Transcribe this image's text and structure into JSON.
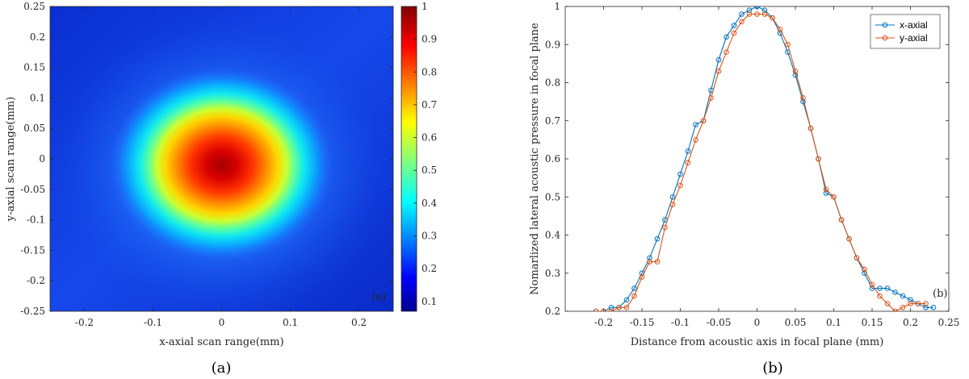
{
  "chart_data": [
    {
      "type": "heatmap",
      "panel": "(a)",
      "caption": "(a)",
      "xlabel": "x-axial scan range(mm)",
      "ylabel": "y-axial scan range(mm)",
      "xlim": [
        -0.25,
        0.25
      ],
      "ylim": [
        -0.25,
        0.25
      ],
      "x_ticks": [
        -0.2,
        -0.1,
        0,
        0.1,
        0.2
      ],
      "x_tick_labels": [
        "-0.2",
        "-0.1",
        "0",
        "0.1",
        "0.2"
      ],
      "y_ticks": [
        0.25,
        0.2,
        0.15,
        0.1,
        0.05,
        0,
        -0.05,
        -0.1,
        -0.15,
        -0.2,
        -0.25
      ],
      "y_tick_labels": [
        "0.25",
        "0.2",
        "0.15",
        "0.1",
        "0.05",
        "0",
        "-0.05",
        "-0.1",
        "-0.15",
        "-0.2",
        "-0.25"
      ],
      "colorbar": {
        "range": [
          0.07,
          1
        ],
        "ticks": [
          1,
          0.9,
          0.8,
          0.7,
          0.6,
          0.5,
          0.4,
          0.3,
          0.2,
          0.1
        ],
        "tick_labels": [
          "1",
          "0.9",
          "0.8",
          "0.7",
          "0.6",
          "0.5",
          "0.4",
          "0.3",
          "0.2",
          "0.1"
        ],
        "colormap": "jet"
      },
      "focal_spot": {
        "center": [
          0,
          -0.01
        ],
        "peak": 1,
        "background": 0.15
      },
      "annotation": "(a)"
    },
    {
      "type": "line",
      "panel": "(b)",
      "caption": "(b)",
      "xlabel": "Distance from acoustic axis in focal plane (mm)",
      "ylabel": "Nomarlized lateral acoustic pressure in focal plane",
      "xlim": [
        -0.25,
        0.25
      ],
      "ylim": [
        0.2,
        1
      ],
      "x_ticks": [
        -0.2,
        -0.15,
        -0.1,
        -0.05,
        0,
        0.05,
        0.1,
        0.15,
        0.2,
        0.25
      ],
      "x_tick_labels": [
        "-0.2",
        "-0.15",
        "-0.1",
        "-0.05",
        "0",
        "0.05",
        "0.1",
        "0.15",
        "0.2",
        "0.25"
      ],
      "y_ticks": [
        0.2,
        0.3,
        0.4,
        0.5,
        0.6,
        0.7,
        0.8,
        0.9,
        1
      ],
      "y_tick_labels": [
        "0.2",
        "0.3",
        "0.4",
        "0.5",
        "0.6",
        "0.7",
        "0.8",
        "0.9",
        "1"
      ],
      "legend_position": "top-right",
      "annotation": "(b)",
      "series": [
        {
          "name": "x-axial",
          "color": "#0072BD",
          "x": [
            -0.21,
            -0.2,
            -0.19,
            -0.18,
            -0.17,
            -0.16,
            -0.15,
            -0.14,
            -0.13,
            -0.12,
            -0.11,
            -0.1,
            -0.09,
            -0.08,
            -0.07,
            -0.06,
            -0.05,
            -0.04,
            -0.03,
            -0.02,
            -0.01,
            0,
            0.01,
            0.02,
            0.03,
            0.04,
            0.05,
            0.06,
            0.07,
            0.08,
            0.09,
            0.1,
            0.11,
            0.12,
            0.13,
            0.14,
            0.15,
            0.16,
            0.17,
            0.18,
            0.19,
            0.2,
            0.21,
            0.22,
            0.23
          ],
          "y": [
            0.2,
            0.2,
            0.21,
            0.21,
            0.23,
            0.26,
            0.3,
            0.34,
            0.39,
            0.44,
            0.5,
            0.56,
            0.62,
            0.69,
            0.7,
            0.78,
            0.86,
            0.92,
            0.95,
            0.98,
            0.99,
            1,
            0.99,
            0.97,
            0.93,
            0.88,
            0.82,
            0.75,
            0.68,
            0.6,
            0.51,
            0.5,
            0.44,
            0.39,
            0.34,
            0.3,
            0.26,
            0.26,
            0.26,
            0.25,
            0.24,
            0.23,
            0.22,
            0.21,
            0.21
          ]
        },
        {
          "name": "y-axial",
          "color": "#D95319",
          "x": [
            -0.21,
            -0.2,
            -0.19,
            -0.18,
            -0.17,
            -0.16,
            -0.15,
            -0.14,
            -0.13,
            -0.12,
            -0.11,
            -0.1,
            -0.09,
            -0.08,
            -0.07,
            -0.06,
            -0.05,
            -0.04,
            -0.03,
            -0.02,
            -0.01,
            0,
            0.01,
            0.02,
            0.03,
            0.04,
            0.05,
            0.06,
            0.07,
            0.08,
            0.09,
            0.1,
            0.11,
            0.12,
            0.13,
            0.14,
            0.15,
            0.16,
            0.17,
            0.18,
            0.19,
            0.2,
            0.21,
            0.22
          ],
          "y": [
            0.2,
            0.2,
            0.2,
            0.21,
            0.21,
            0.24,
            0.29,
            0.33,
            0.33,
            0.42,
            0.48,
            0.53,
            0.59,
            0.65,
            0.7,
            0.76,
            0.83,
            0.88,
            0.93,
            0.96,
            0.98,
            0.98,
            0.98,
            0.97,
            0.94,
            0.9,
            0.83,
            0.76,
            0.68,
            0.6,
            0.52,
            0.5,
            0.44,
            0.39,
            0.34,
            0.31,
            0.27,
            0.24,
            0.22,
            0.2,
            0.21,
            0.22,
            0.22,
            0.22
          ]
        }
      ]
    }
  ]
}
